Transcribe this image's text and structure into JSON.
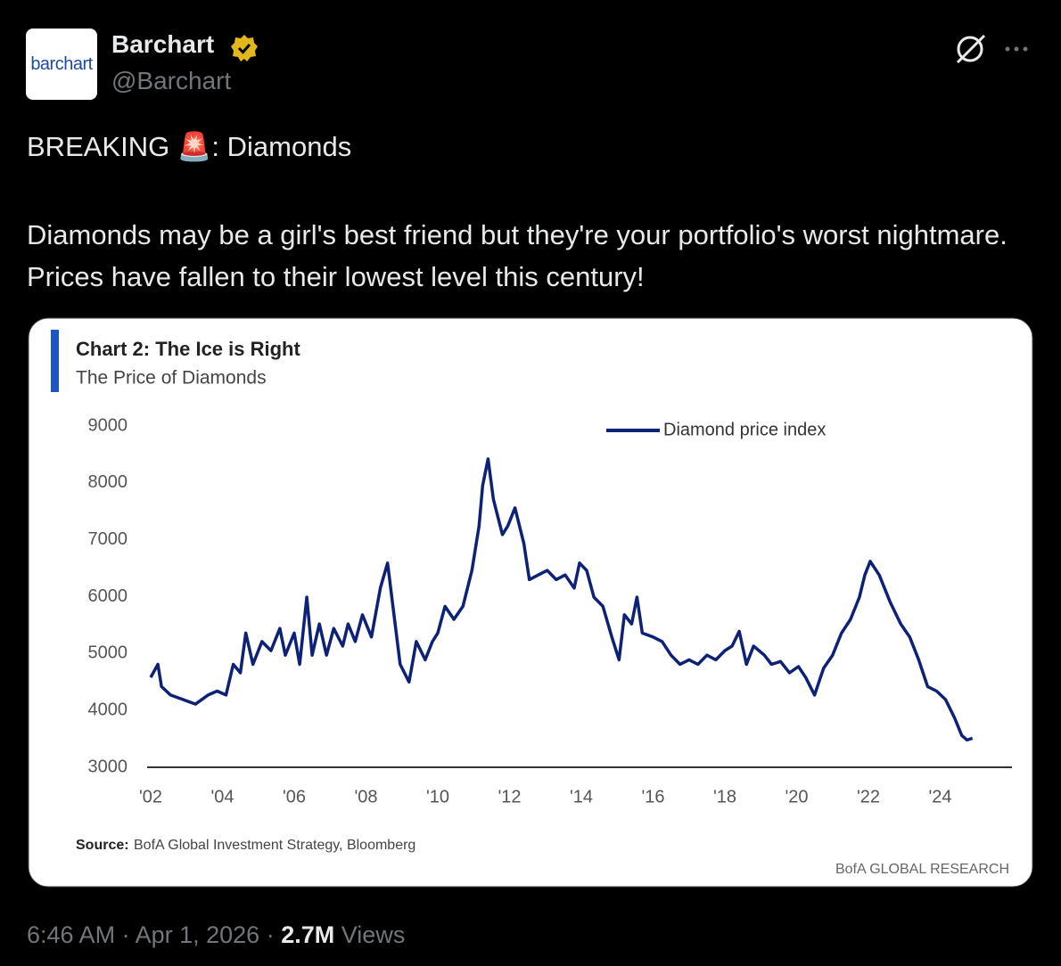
{
  "post": {
    "avatar_text": "barchart",
    "author_name": "Barchart",
    "handle": "@Barchart",
    "headline": "BREAKING 🚨: Diamonds",
    "body": "Diamonds may be a girl's best friend but they're your portfolio's worst nightmare.  Prices have fallen to their lowest level this century!",
    "time": "6:46 AM",
    "separator": "·",
    "date": "Apr 1, 2026",
    "views_count": "2.7M",
    "views_label": "Views"
  },
  "chart_data": {
    "type": "line",
    "title": "Chart 2: The Ice is Right",
    "subtitle": "The Price of Diamonds",
    "source_label": "Source:",
    "source": "BofA Global Investment Strategy, Bloomberg",
    "branding": "BofA GLOBAL RESEARCH",
    "legend": "top-right",
    "grid": false,
    "xlim": [
      2001.9,
      2026
    ],
    "ylim": [
      3000,
      9000
    ],
    "yticks": [
      3000,
      4000,
      5000,
      6000,
      7000,
      8000,
      9000
    ],
    "xticks": [
      {
        "value": 2002,
        "label": "'02"
      },
      {
        "value": 2004,
        "label": "'04"
      },
      {
        "value": 2006,
        "label": "'06"
      },
      {
        "value": 2008,
        "label": "'08"
      },
      {
        "value": 2010,
        "label": "'10"
      },
      {
        "value": 2012,
        "label": "'12"
      },
      {
        "value": 2014,
        "label": "'14"
      },
      {
        "value": 2016,
        "label": "'16"
      },
      {
        "value": 2018,
        "label": "'18"
      },
      {
        "value": 2020,
        "label": "'20"
      },
      {
        "value": 2022,
        "label": "'22"
      },
      {
        "value": 2024,
        "label": "'24"
      }
    ],
    "x": [
      2002,
      2002.2,
      2002.3,
      2002.55,
      2002.9,
      2003.25,
      2003.6,
      2003.85,
      2004.1,
      2004.3,
      2004.5,
      2004.65,
      2004.85,
      2005.1,
      2005.35,
      2005.6,
      2005.75,
      2006.0,
      2006.15,
      2006.35,
      2006.5,
      2006.7,
      2006.9,
      2007.1,
      2007.35,
      2007.5,
      2007.7,
      2007.9,
      2008.15,
      2008.4,
      2008.6,
      2008.75,
      2008.95,
      2009.2,
      2009.4,
      2009.65,
      2009.85,
      2010.0,
      2010.2,
      2010.45,
      2010.7,
      2010.95,
      2011.15,
      2011.25,
      2011.4,
      2011.55,
      2011.8,
      2011.95,
      2012.15,
      2012.4,
      2012.55,
      2012.8,
      2013.05,
      2013.3,
      2013.55,
      2013.8,
      2013.95,
      2014.15,
      2014.35,
      2014.6,
      2014.85,
      2015.05,
      2015.2,
      2015.4,
      2015.55,
      2015.7,
      2016.0,
      2016.25,
      2016.5,
      2016.75,
      2017.0,
      2017.25,
      2017.5,
      2017.75,
      2018.0,
      2018.2,
      2018.4,
      2018.6,
      2018.8,
      2019.1,
      2019.3,
      2019.55,
      2019.8,
      2020.05,
      2020.25,
      2020.5,
      2020.75,
      2021.0,
      2021.25,
      2021.5,
      2021.75,
      2021.9,
      2022.05,
      2022.3,
      2022.6,
      2022.9,
      2023.15,
      2023.4,
      2023.65,
      2023.9,
      2024.15,
      2024.4,
      2024.6,
      2024.75,
      2024.9
    ],
    "series": [
      {
        "name": "Diamond price index",
        "color": "#0d2277",
        "values": [
          4580,
          4810,
          4420,
          4270,
          4190,
          4110,
          4270,
          4340,
          4270,
          4810,
          4660,
          5360,
          4810,
          5210,
          5050,
          5440,
          4970,
          5360,
          4810,
          5990,
          4970,
          5520,
          4970,
          5440,
          5130,
          5520,
          5210,
          5680,
          5290,
          6150,
          6590,
          5830,
          4810,
          4500,
          5210,
          4890,
          5210,
          5360,
          5830,
          5600,
          5830,
          6460,
          7240,
          7950,
          8420,
          7710,
          7090,
          7240,
          7560,
          6930,
          6300,
          6380,
          6460,
          6300,
          6380,
          6150,
          6590,
          6460,
          5990,
          5830,
          5290,
          4890,
          5680,
          5520,
          5990,
          5360,
          5290,
          5210,
          4970,
          4810,
          4890,
          4810,
          4970,
          4890,
          5050,
          5130,
          5390,
          4810,
          5130,
          4970,
          4810,
          4860,
          4660,
          4770,
          4580,
          4270,
          4740,
          4970,
          5360,
          5600,
          5990,
          6380,
          6620,
          6380,
          5910,
          5520,
          5290,
          4890,
          4420,
          4340,
          4190,
          3870,
          3560,
          3480,
          3510
        ]
      }
    ]
  }
}
